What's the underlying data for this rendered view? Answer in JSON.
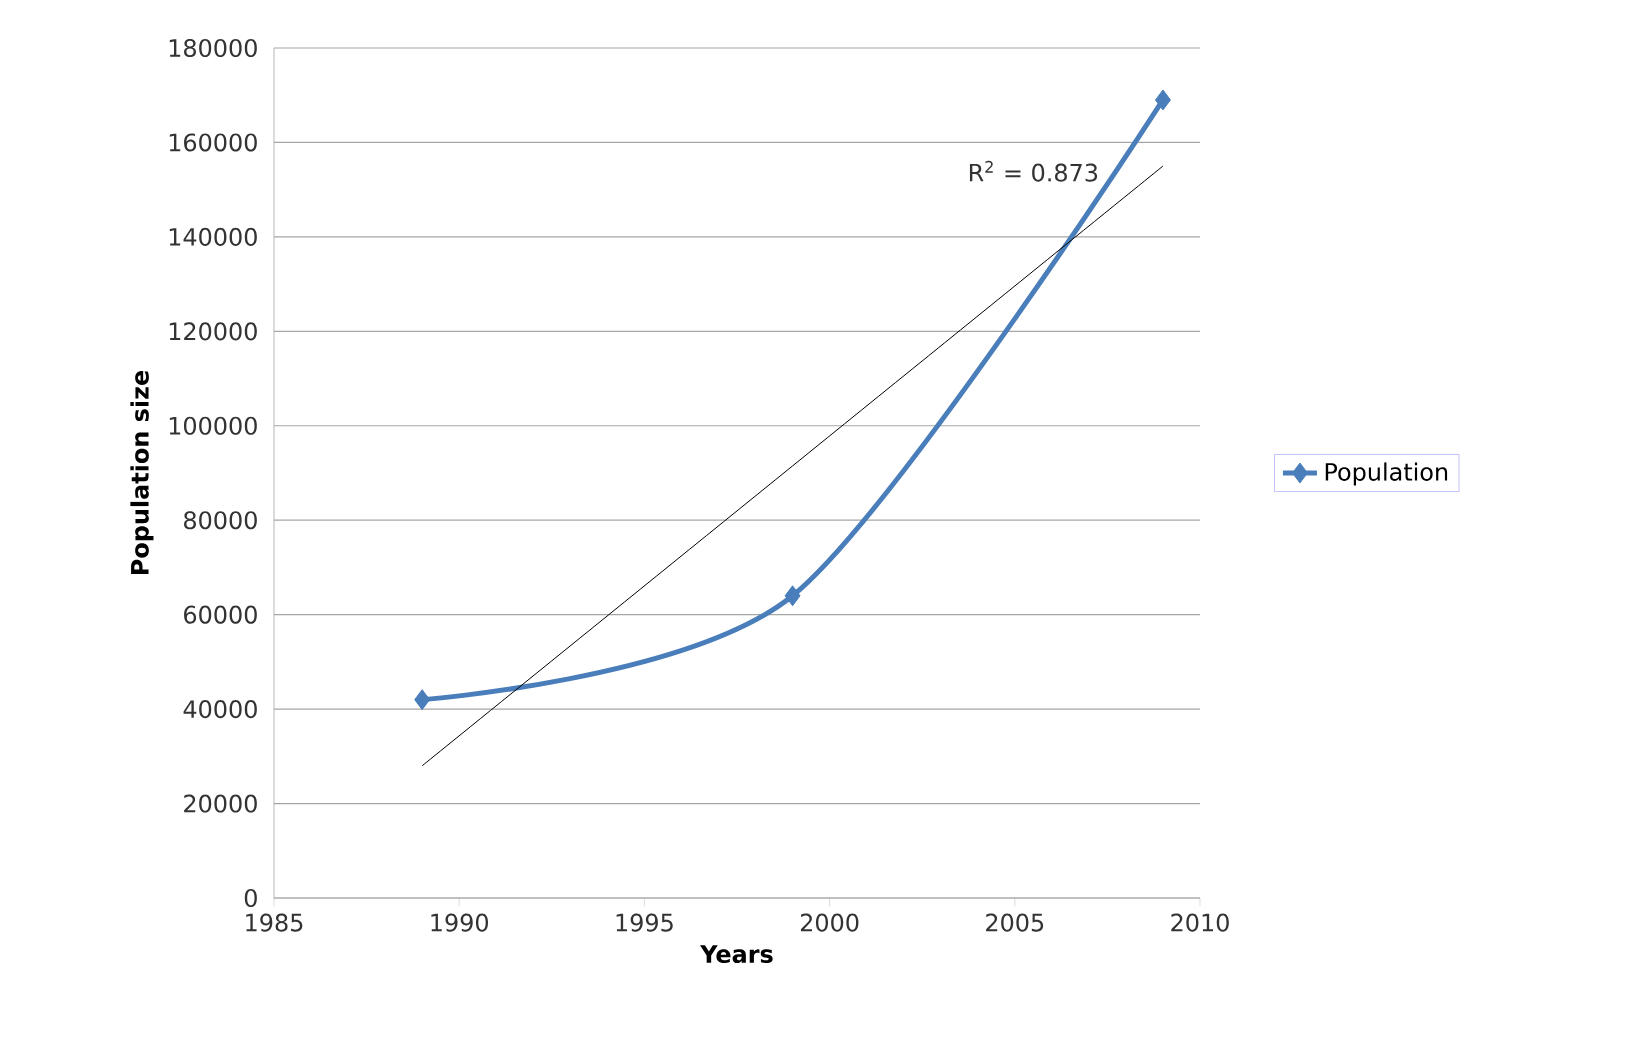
{
  "chart_data": {
    "type": "line",
    "xlabel": "Years",
    "ylabel": "Population size",
    "series": [
      {
        "name": "Population",
        "color": "#4a7ebb",
        "x": [
          1989,
          1999,
          2009
        ],
        "values": [
          42000,
          64000,
          169000
        ],
        "marker": "diamond"
      },
      {
        "type": "line",
        "color": "#000000",
        "x": [
          1989,
          2009
        ],
        "values": [
          28000,
          155000
        ],
        "marker": "none"
      }
    ],
    "annotations": [
      "R$^{2}$ = 0.873"
    ],
    "xlim": [
      1985,
      2010
    ],
    "xticks": [
      1985,
      1990,
      1995,
      2000,
      2005,
      2010
    ],
    "ylim": [
      0,
      180000
    ],
    "yticks": [
      0,
      20000,
      40000,
      60000,
      80000,
      100000,
      120000,
      140000,
      160000,
      180000
    ],
    "grid": "y",
    "legend": "right"
  }
}
